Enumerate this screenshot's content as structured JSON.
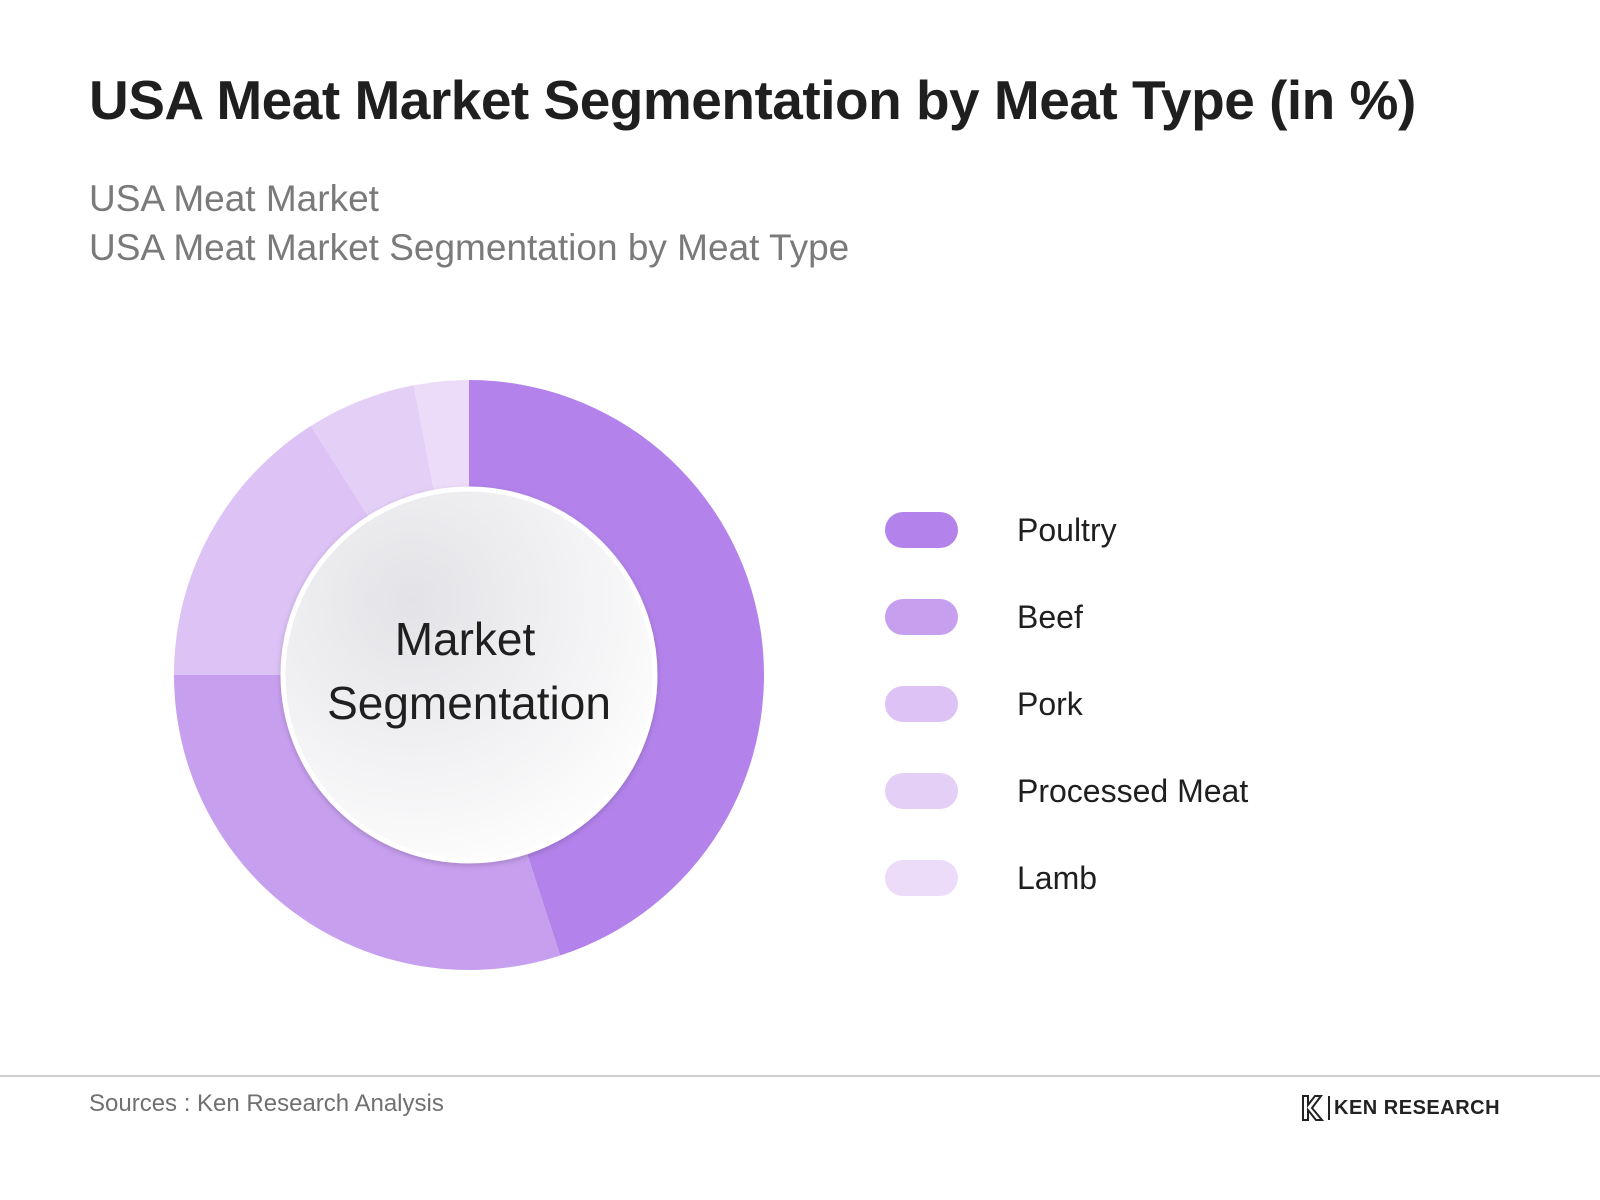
{
  "header": {
    "title": "USA Meat Market Segmentation by Meat Type (in %)",
    "subtitle_1": "USA Meat Market",
    "subtitle_2": "USA Meat Market Segmentation by Meat Type"
  },
  "chart_data": {
    "type": "pie",
    "variant": "donut",
    "center_label_line1": "Market",
    "center_label_line2": "Segmentation",
    "categories": [
      "Poultry",
      "Beef",
      "Pork",
      "Processed Meat",
      "Lamb"
    ],
    "values": [
      45,
      30,
      16,
      6,
      3
    ],
    "colors": [
      "#b383eb",
      "#c79fef",
      "#dcc2f5",
      "#e4cff7",
      "#ecdcfa"
    ],
    "legend_position": "right",
    "start_angle": "top",
    "direction": "clockwise"
  },
  "footer": {
    "source": "Sources : Ken Research Analysis",
    "brand": "KEN RESEARCH",
    "brand_logo_icon": "ken-research-logo-icon"
  }
}
